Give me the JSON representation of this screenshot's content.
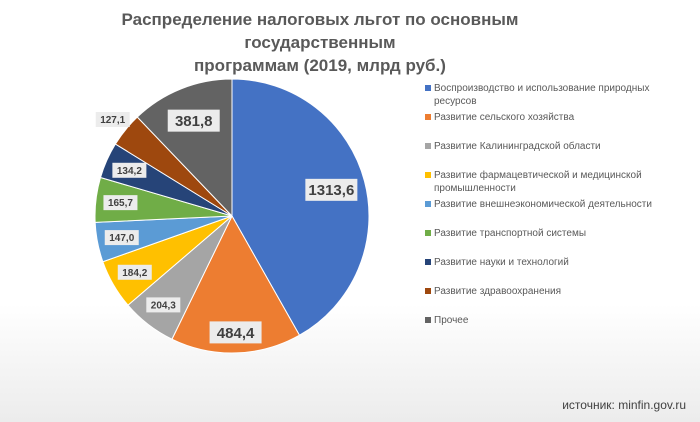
{
  "chart_data": {
    "type": "pie",
    "title": "Распределение налоговых льгот по основным государственным программам (2019, млрд руб.)",
    "categories": [
      "Воспроизводство и использование природных ресурсов",
      "Развитие сельского хозяйства",
      "Развитие Калининградской области",
      "Развитие фармацевтической и медицинской промышленности",
      "Развитие внешнеэкономической деятельности",
      "Развитие транспортной системы",
      "Развитие науки и технологий",
      "Развитие здравоохранения",
      "Прочее"
    ],
    "values": [
      1313.6,
      484.4,
      204.3,
      184.2,
      147.0,
      165.7,
      134.2,
      127.1,
      381.8
    ],
    "labels": [
      "1313,6",
      "484,4",
      "204,3",
      "184,2",
      "147,0",
      "165,7",
      "134,2",
      "127,1",
      "381,8"
    ],
    "colors": [
      "#4472c4",
      "#ed7d31",
      "#a5a5a5",
      "#ffc000",
      "#5b9bd5",
      "#70ad47",
      "#264478",
      "#9e480e",
      "#636363"
    ],
    "legend_position": "right"
  },
  "title_line1": "Распределение налоговых льгот по основным государственным",
  "title_line2": "программам (2019, млрд руб.)",
  "source": "источник: minfin.gov.ru"
}
